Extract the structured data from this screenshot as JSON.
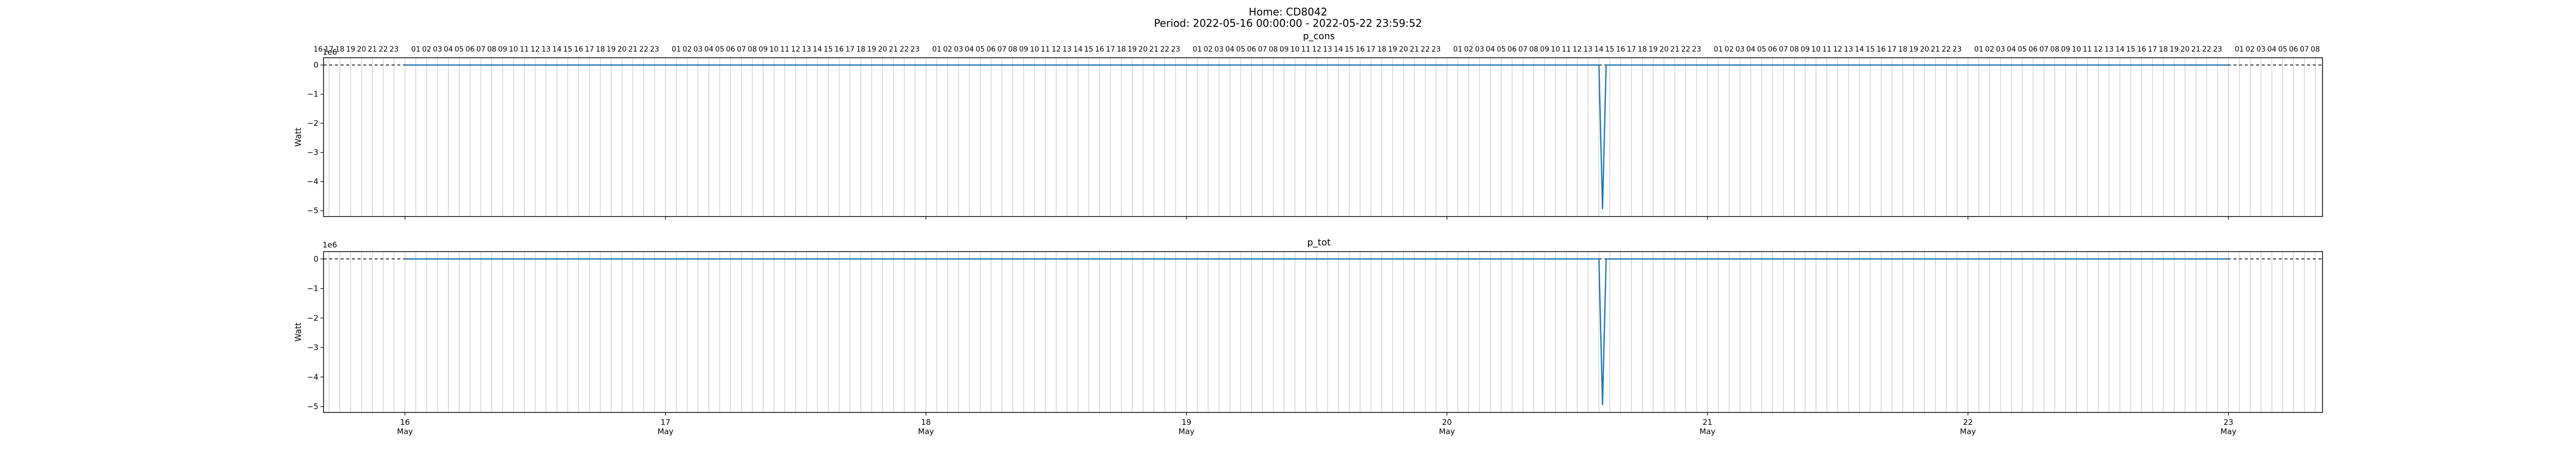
{
  "figure": {
    "suptitle_line1": "Home: CD8042",
    "suptitle_line2": "Period: 2022-05-16 00:00:00 - 2022-05-22 23:59:52"
  },
  "chart_data": [
    {
      "type": "line",
      "title": "p_cons",
      "xlabel": "",
      "ylabel": "Watt",
      "ylim": [
        -5.2,
        0.25
      ],
      "y_ticks": [
        0,
        -1,
        -2,
        -3,
        -4,
        -5
      ],
      "y_multiplier": "1e6",
      "x_range": [
        "2022-05-15T16:30",
        "2022-05-23T08:40"
      ],
      "date_ticks": [
        {
          "day": "16",
          "month": "May"
        },
        {
          "day": "17",
          "month": "May"
        },
        {
          "day": "18",
          "month": "May"
        },
        {
          "day": "19",
          "month": "May"
        },
        {
          "day": "20",
          "month": "May"
        },
        {
          "day": "21",
          "month": "May"
        },
        {
          "day": "22",
          "month": "May"
        },
        {
          "day": "23",
          "month": "May"
        }
      ],
      "hour_labels_first": [
        "16",
        "17",
        "18",
        "19",
        "20",
        "21",
        "22",
        "23"
      ],
      "hour_labels_day": [
        "01",
        "02",
        "03",
        "04",
        "05",
        "06",
        "07",
        "08",
        "09",
        "10",
        "11",
        "12",
        "13",
        "14",
        "15",
        "16",
        "17",
        "18",
        "19",
        "20",
        "21",
        "22",
        "23"
      ],
      "hour_labels_last": [
        "01",
        "02",
        "03",
        "04",
        "05",
        "06",
        "07",
        "08"
      ],
      "hline_y": 0,
      "series": [
        {
          "color": "#1f77b4",
          "x": [
            "2022-05-16T00:00",
            "2022-05-20T14:00",
            "2022-05-20T14:20",
            "2022-05-20T14:40",
            "2022-05-22T23:59"
          ],
          "y": [
            0,
            0,
            -4.95,
            0,
            0
          ]
        }
      ]
    },
    {
      "type": "line",
      "title": "p_tot",
      "xlabel": "",
      "ylabel": "Watt",
      "ylim": [
        -5.2,
        0.25
      ],
      "y_ticks": [
        0,
        -1,
        -2,
        -3,
        -4,
        -5
      ],
      "y_multiplier": "1e6",
      "x_range": [
        "2022-05-15T16:30",
        "2022-05-23T08:40"
      ],
      "date_ticks": [
        {
          "day": "16",
          "month": "May"
        },
        {
          "day": "17",
          "month": "May"
        },
        {
          "day": "18",
          "month": "May"
        },
        {
          "day": "19",
          "month": "May"
        },
        {
          "day": "20",
          "month": "May"
        },
        {
          "day": "21",
          "month": "May"
        },
        {
          "day": "22",
          "month": "May"
        },
        {
          "day": "23",
          "month": "May"
        }
      ],
      "hline_y": 0,
      "series": [
        {
          "color": "#1f77b4",
          "x": [
            "2022-05-16T00:00",
            "2022-05-20T14:00",
            "2022-05-20T14:20",
            "2022-05-20T14:40",
            "2022-05-22T23:59"
          ],
          "y": [
            0,
            0,
            -4.95,
            0,
            0
          ]
        }
      ]
    }
  ]
}
